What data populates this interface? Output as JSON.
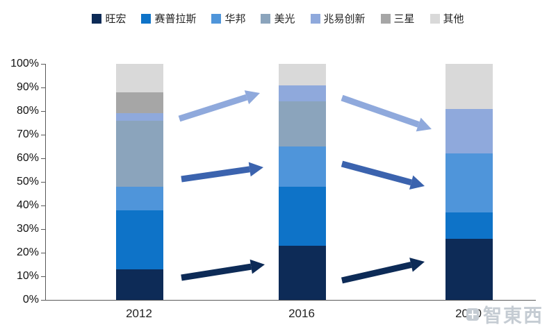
{
  "chart_data": {
    "type": "bar",
    "stacked": true,
    "percent_stacked": true,
    "title": "",
    "xlabel": "",
    "ylabel": "",
    "unit": "%",
    "grid": false,
    "legend_position": "top",
    "ylim": [
      0,
      100
    ],
    "categories": [
      "2012",
      "2016",
      "2020"
    ],
    "series": [
      {
        "name": "旺宏",
        "color": "#0d2b57",
        "values": [
          13,
          23,
          26
        ]
      },
      {
        "name": "赛普拉斯",
        "color": "#0e73c8",
        "values": [
          25,
          25,
          11
        ]
      },
      {
        "name": "华邦",
        "color": "#4f95da",
        "values": [
          10,
          17,
          25
        ]
      },
      {
        "name": "美光",
        "color": "#8ba4bc",
        "values": [
          28,
          19,
          0
        ]
      },
      {
        "name": "兆易创新",
        "color": "#8fa9dc",
        "values": [
          3,
          7,
          19
        ]
      },
      {
        "name": "三星",
        "color": "#a6a6a6",
        "values": [
          9,
          0,
          0
        ]
      },
      {
        "name": "其他",
        "color": "#d9d9d9",
        "values": [
          12,
          9,
          19
        ]
      }
    ],
    "y_ticks": [
      "100%",
      "90%",
      "80%",
      "70%",
      "60%",
      "50%",
      "40%",
      "30%",
      "20%",
      "10%",
      "0%"
    ],
    "annotations": {
      "arrows": [
        {
          "name": "trend-arrow-top-left",
          "color": "#8fa9dc",
          "from": [
            258,
            171
          ],
          "to": [
            374,
            134
          ]
        },
        {
          "name": "trend-arrow-top-right",
          "color": "#8fa9dc",
          "from": [
            492,
            141
          ],
          "to": [
            621,
            186
          ]
        },
        {
          "name": "trend-arrow-mid-left",
          "color": "#3b63ae",
          "from": [
            261,
            258
          ],
          "to": [
            379,
            241
          ]
        },
        {
          "name": "trend-arrow-mid-right",
          "color": "#3b63ae",
          "from": [
            492,
            236
          ],
          "to": [
            611,
            268
          ]
        },
        {
          "name": "trend-arrow-bottom-left",
          "color": "#0d2b57",
          "from": [
            261,
            400
          ],
          "to": [
            381,
            381
          ]
        },
        {
          "name": "trend-arrow-bottom-right",
          "color": "#0d2b57",
          "from": [
            492,
            404
          ],
          "to": [
            611,
            377
          ]
        }
      ]
    }
  },
  "watermark": "智東西"
}
